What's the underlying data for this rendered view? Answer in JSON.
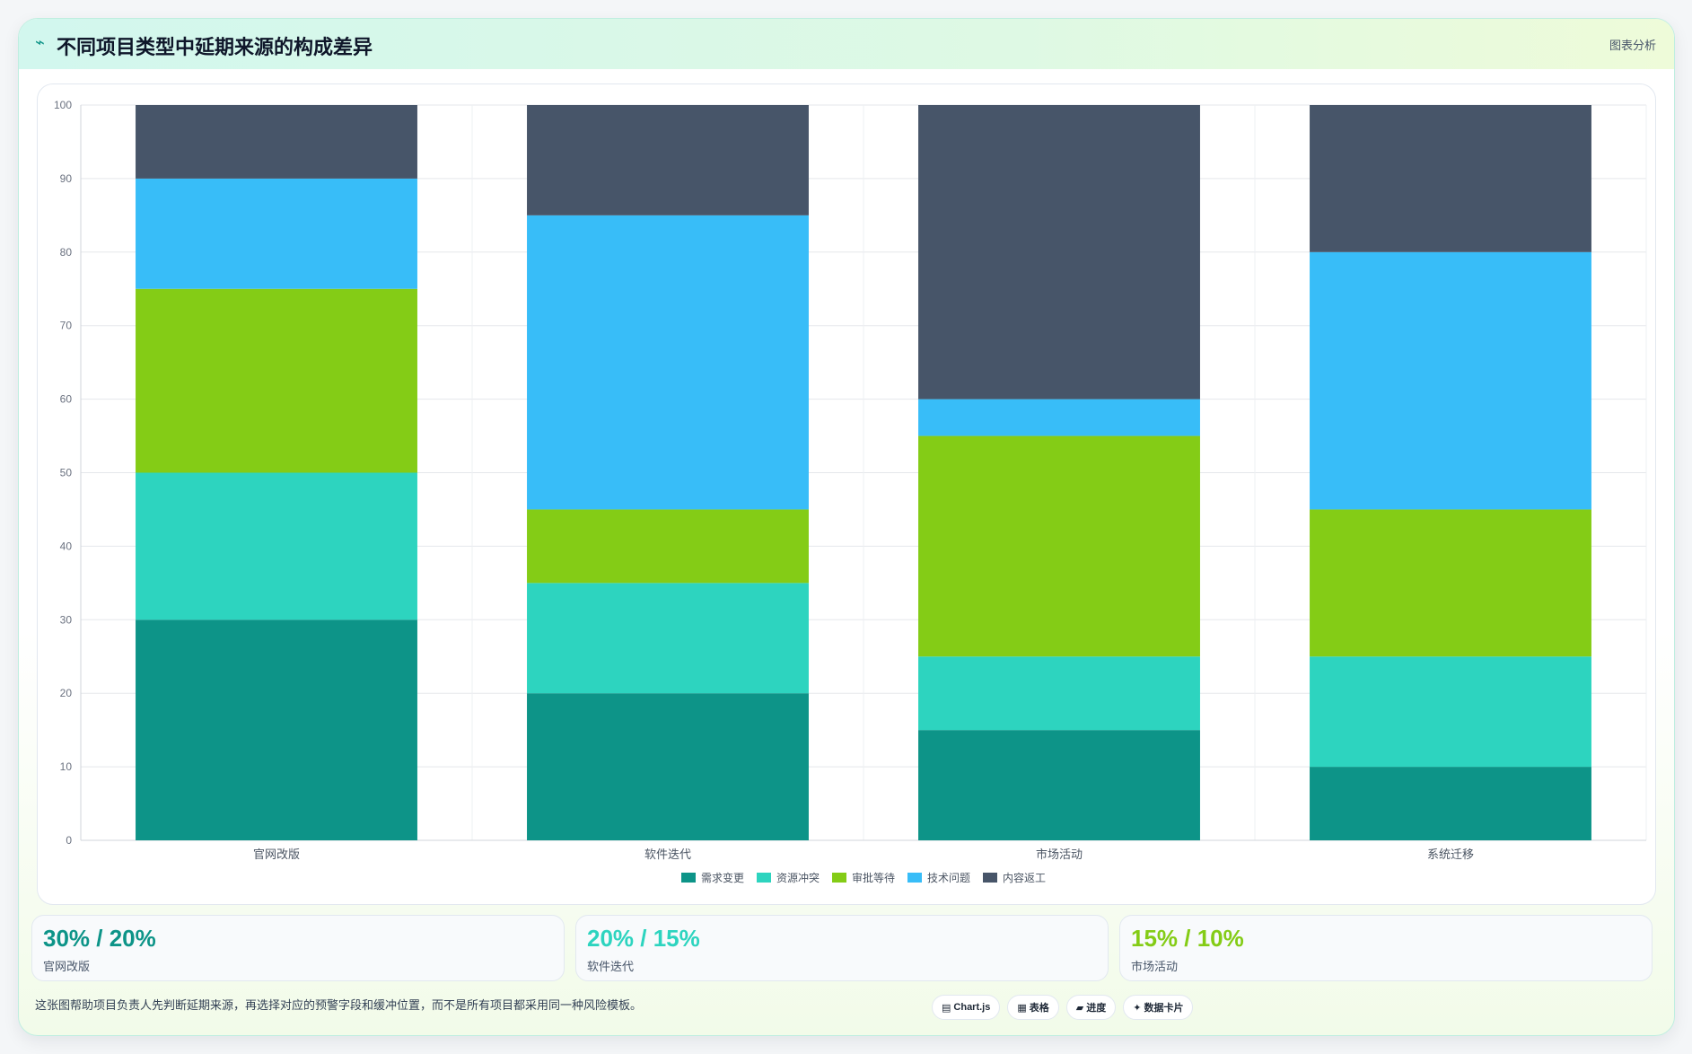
{
  "header": {
    "icon": "trend-icon",
    "title": "不同项目类型中延期来源的构成差异",
    "badge": "图表分析"
  },
  "chart_data": {
    "type": "bar",
    "stacked": true,
    "categories": [
      "官网改版",
      "软件迭代",
      "市场活动",
      "系统迁移"
    ],
    "series": [
      {
        "name": "需求变更",
        "color": "#0d9488",
        "values": [
          30,
          20,
          15,
          10
        ]
      },
      {
        "name": "资源冲突",
        "color": "#2dd4bf",
        "values": [
          20,
          15,
          10,
          15
        ]
      },
      {
        "name": "审批等待",
        "color": "#84cc16",
        "values": [
          25,
          10,
          30,
          20
        ]
      },
      {
        "name": "技术问题",
        "color": "#38bdf8",
        "values": [
          15,
          40,
          5,
          35
        ]
      },
      {
        "name": "内容返工",
        "color": "#475569",
        "values": [
          10,
          15,
          40,
          20
        ]
      }
    ],
    "ylim": [
      0,
      100
    ],
    "yticks": [
      0,
      10,
      20,
      30,
      40,
      50,
      60,
      70,
      80,
      90,
      100
    ],
    "grid": true,
    "legend": "bottom"
  },
  "stats": [
    {
      "value": "30% / 20%",
      "label": "官网改版",
      "color": "#0d9488"
    },
    {
      "value": "20% / 15%",
      "label": "软件迭代",
      "color": "#2dd4bf"
    },
    {
      "value": "15% / 10%",
      "label": "市场活动",
      "color": "#84cc16"
    }
  ],
  "footer": {
    "note": "这张图帮助项目负责人先判断延期来源，再选择对应的预警字段和缓冲位置，而不是所有项目都采用同一种风险模板。",
    "chips": [
      {
        "icon": "chart-icon",
        "glyph": "▤",
        "label": "Chart.js"
      },
      {
        "icon": "table-icon",
        "glyph": "▦",
        "label": "表格"
      },
      {
        "icon": "progress-icon",
        "glyph": "▰",
        "label": "进度"
      },
      {
        "icon": "card-icon",
        "glyph": "✦",
        "label": "数据卡片"
      }
    ]
  }
}
